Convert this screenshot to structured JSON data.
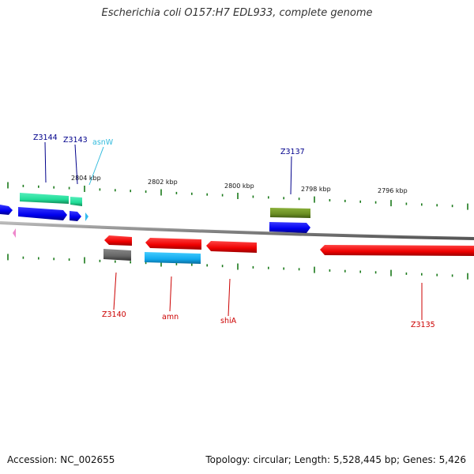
{
  "title": "Escherichia coli O157:H7 EDL933, complete genome",
  "footer": {
    "accession": "Accession: NC_002655",
    "summary": "Topology: circular; Length: 5,528,445 bp; Genes: 5,426"
  },
  "scale_labels": [
    "2804 kbp",
    "2802 kbp",
    "2800 kbp",
    "2798 kbp",
    "2796 kbp"
  ],
  "features": [
    {
      "label": "Z3144",
      "strand": "forward",
      "color": "#00008b"
    },
    {
      "label": "Z3143",
      "strand": "forward",
      "color": "#00008b"
    },
    {
      "label": "asnW",
      "strand": "forward",
      "color": "#33bbdd"
    },
    {
      "label": "Z3137",
      "strand": "forward",
      "color": "#00008b"
    },
    {
      "label": "Z3140",
      "strand": "reverse",
      "color": "#cc0000"
    },
    {
      "label": "amn",
      "strand": "reverse",
      "color": "#cc0000"
    },
    {
      "label": "shiA",
      "strand": "reverse",
      "color": "#cc0000"
    },
    {
      "label": "Z3135",
      "strand": "reverse",
      "color": "#cc0000"
    }
  ],
  "colors": {
    "backbone": "#8a8a8a",
    "tick": "#1a7a1a",
    "forward_cds": "#0000ee",
    "reverse_cds": "#ee0000",
    "rna": "#22aaee",
    "other_forward": "#22dd99",
    "other_reverse": "#666666",
    "olive_feature": "#6b8e23",
    "pink_feature": "#ee88cc"
  }
}
